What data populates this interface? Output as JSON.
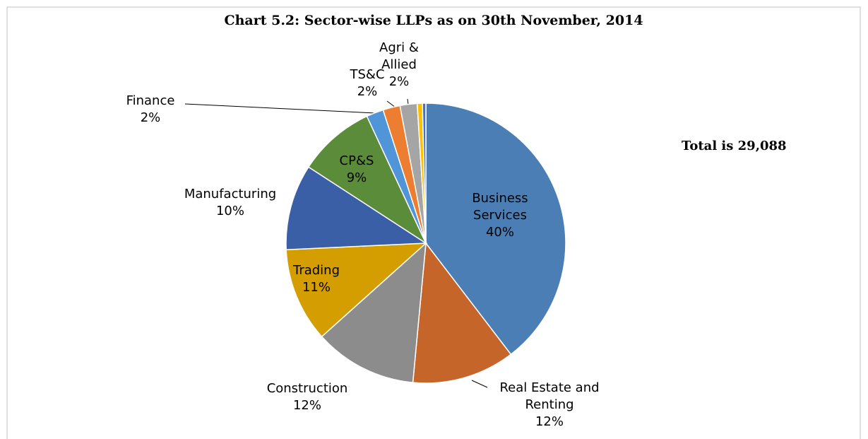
{
  "chart_data": {
    "type": "pie",
    "title": "Chart 5.2: Sector-wise LLPs as on 30th November, 2014",
    "annotation": "Total is 29,088",
    "categories": [
      "Business Services",
      "Real Estate and Renting",
      "Construction",
      "Trading",
      "Manufacturing",
      "CP&S",
      "Finance",
      "TS&C",
      "Agri & Allied",
      null,
      null
    ],
    "values": [
      40,
      12,
      12,
      11,
      10,
      9,
      2,
      2,
      2,
      0.6,
      0.4
    ],
    "value_labels": [
      "40%",
      "12%",
      "12%",
      "11%",
      "10%",
      "9%",
      "2%",
      "2%",
      "2%",
      null,
      null
    ],
    "colors": [
      "#4a7eb5",
      "#c5652a",
      "#8c8c8c",
      "#d49e00",
      "#3b5fa6",
      "#5b8c39",
      "#4f95d8",
      "#ed7d31",
      "#a5a5a5",
      "#ffc000",
      "#4472c4"
    ]
  }
}
